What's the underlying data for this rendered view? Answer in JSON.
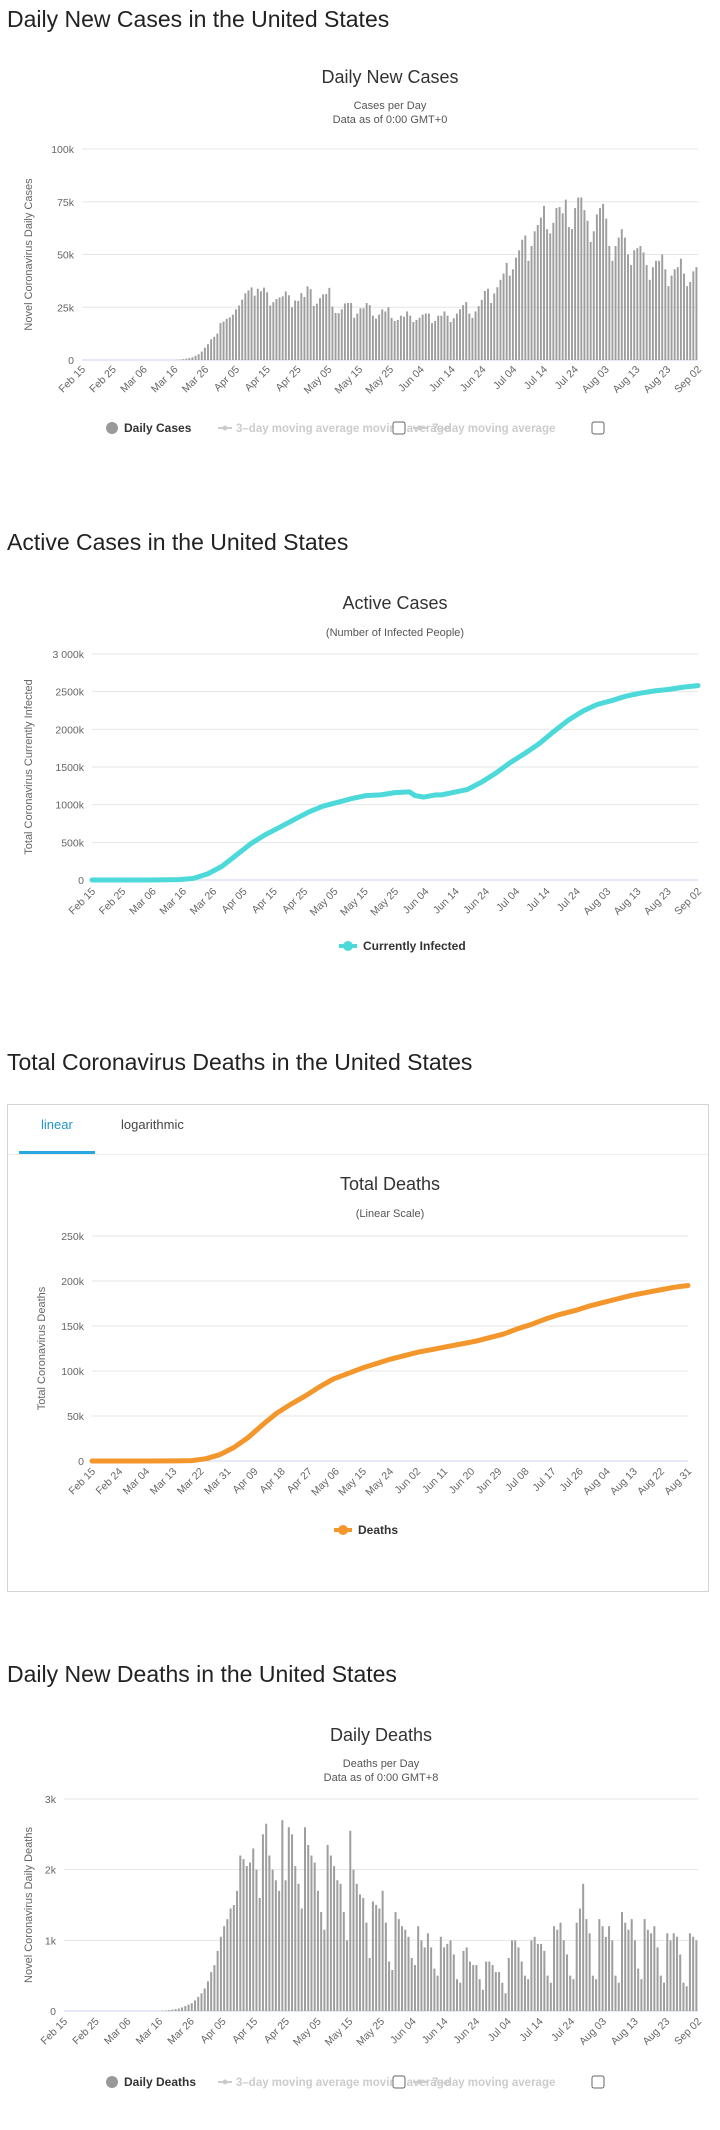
{
  "sections": {
    "daily_cases": "Daily New Cases in the United States",
    "active_cases": "Active Cases in the United States",
    "total_deaths": "Total Coronavirus Deaths in the United States",
    "daily_deaths": "Daily New Deaths in the United States"
  },
  "deaths_tabs": [
    "linear",
    "logarithmic"
  ],
  "colors": {
    "bars": "#9e9e9e",
    "active": "#4dd9d9",
    "deaths": "#f3962b",
    "grid": "#e6e6e6",
    "tab_active": "#2196c9"
  },
  "chart_data": [
    {
      "id": "daily_cases",
      "type": "bar",
      "title": "Daily New Cases",
      "subtitle": [
        "Cases per Day",
        "Data as of 0:00 GMT+0"
      ],
      "ylabel": "Novel Coronavirus Daily Cases",
      "ylim": [
        0,
        100000
      ],
      "yticks": [
        0,
        25000,
        50000,
        75000,
        100000
      ],
      "ytick_labels": [
        "0",
        "25k",
        "50k",
        "75k",
        "100k"
      ],
      "xtick_labels": [
        "Feb 15",
        "Feb 25",
        "Mar 06",
        "Mar 16",
        "Mar 26",
        "Apr 05",
        "Apr 15",
        "Apr 25",
        "May 05",
        "May 15",
        "May 25",
        "Jun 04",
        "Jun 14",
        "Jun 24",
        "Jul 04",
        "Jul 14",
        "Jul 24",
        "Aug 03",
        "Aug 13",
        "Aug 23",
        "Sep 02"
      ],
      "legend": [
        "Daily Cases",
        "3-day moving average",
        "7-day moving average"
      ],
      "values": [
        0,
        0,
        0,
        0,
        0,
        0,
        0,
        0,
        0,
        0,
        0,
        0,
        0,
        0,
        0,
        0,
        0,
        0,
        0,
        0,
        0,
        0,
        0,
        0,
        0,
        0,
        0,
        0,
        0,
        0,
        100,
        200,
        400,
        600,
        900,
        1300,
        2000,
        2700,
        4000,
        5800,
        7500,
        9800,
        11000,
        12500,
        17500,
        18200,
        19500,
        20200,
        21500,
        24000,
        25800,
        28600,
        31600,
        33000,
        34400,
        30500,
        33800,
        32600,
        34300,
        32100,
        25800,
        27400,
        28900,
        29600,
        30200,
        32500,
        30700,
        25000,
        28200,
        28000,
        31700,
        29900,
        34900,
        33600,
        25600,
        26700,
        29300,
        31100,
        31300,
        34200,
        25300,
        22300,
        22200,
        24000,
        26800,
        27000,
        27000,
        20000,
        22000,
        24500,
        24500,
        27000,
        26000,
        21000,
        19600,
        21500,
        24000,
        23000,
        25000,
        20000,
        18500,
        19000,
        21000,
        20500,
        23000,
        21000,
        18000,
        19000,
        20000,
        21500,
        22000,
        22000,
        17500,
        18500,
        21000,
        21000,
        23000,
        21000,
        18000,
        19800,
        22000,
        24000,
        26000,
        27500,
        22000,
        20000,
        23000,
        25500,
        28500,
        32700,
        33800,
        27000,
        31500,
        34500,
        38000,
        41000,
        46000,
        40000,
        43000,
        48500,
        52000,
        57000,
        59000,
        47000,
        54000,
        61000,
        64000,
        67500,
        73000,
        62000,
        60000,
        65000,
        72000,
        72500,
        69500,
        76000,
        63000,
        62000,
        72000,
        77000,
        77000,
        71000,
        66000,
        56000,
        61000,
        69000,
        72000,
        74000,
        67000,
        54000,
        47000,
        54000,
        58000,
        62000,
        58000,
        50000,
        45000,
        52000,
        53000,
        54000,
        51000,
        45000,
        38000,
        44000,
        47000,
        47000,
        50000,
        43000,
        35000,
        40000,
        43000,
        44000,
        48000,
        41000,
        35000,
        37000,
        42000,
        44000
      ]
    },
    {
      "id": "active_cases",
      "type": "line",
      "title": "Active Cases",
      "subtitle": [
        "(Number of Infected People)"
      ],
      "ylabel": "Total Coronavirus Currently Infected",
      "ylim": [
        0,
        3000000
      ],
      "yticks": [
        0,
        500000,
        1000000,
        1500000,
        2000000,
        2500000,
        3000000
      ],
      "ytick_labels": [
        "0",
        "500k",
        "1000k",
        "1500k",
        "2000k",
        "2500k",
        "3 000k"
      ],
      "xtick_labels": [
        "Feb 15",
        "Feb 25",
        "Mar 06",
        "Mar 16",
        "Mar 26",
        "Apr 05",
        "Apr 15",
        "Apr 25",
        "May 05",
        "May 15",
        "May 25",
        "Jun 04",
        "Jun 14",
        "Jun 24",
        "Jul 04",
        "Jul 14",
        "Jul 24",
        "Aug 03",
        "Aug 13",
        "Aug 23",
        "Sep 02"
      ],
      "legend": [
        "Currently Infected"
      ],
      "x": [
        0,
        20,
        30,
        35,
        40,
        45,
        50,
        55,
        60,
        65,
        70,
        75,
        80,
        85,
        90,
        95,
        100,
        105,
        110,
        112,
        115,
        119,
        121,
        125,
        130,
        135,
        140,
        145,
        150,
        155,
        160,
        165,
        170,
        175,
        180,
        185,
        190,
        195,
        200,
        205,
        210
      ],
      "values": [
        0,
        0,
        5000,
        20000,
        80000,
        180000,
        330000,
        480000,
        600000,
        700000,
        800000,
        900000,
        980000,
        1030000,
        1080000,
        1120000,
        1130000,
        1160000,
        1170000,
        1120000,
        1100000,
        1130000,
        1130000,
        1160000,
        1200000,
        1300000,
        1420000,
        1560000,
        1680000,
        1810000,
        1970000,
        2120000,
        2240000,
        2330000,
        2380000,
        2440000,
        2480000,
        2510000,
        2530000,
        2560000,
        2580000
      ]
    },
    {
      "id": "total_deaths",
      "type": "line",
      "title": "Total Deaths",
      "subtitle": [
        "(Linear Scale)"
      ],
      "ylabel": "Total Coronavirus Deaths",
      "ylim": [
        0,
        250000
      ],
      "yticks": [
        0,
        50000,
        100000,
        150000,
        200000,
        250000
      ],
      "ytick_labels": [
        "0",
        "50k",
        "100k",
        "150k",
        "200k",
        "250k"
      ],
      "xtick_labels": [
        "Feb 15",
        "Feb 24",
        "Mar 04",
        "Mar 13",
        "Mar 22",
        "Mar 31",
        "Apr 09",
        "Apr 18",
        "Apr 27",
        "May 06",
        "May 15",
        "May 24",
        "Jun 02",
        "Jun 11",
        "Jun 20",
        "Jun 29",
        "Jul 08",
        "Jul 17",
        "Jul 26",
        "Aug 04",
        "Aug 13",
        "Aug 22",
        "Aug 31"
      ],
      "legend": [
        "Deaths"
      ],
      "x": [
        0,
        20,
        30,
        35,
        40,
        45,
        50,
        55,
        60,
        65,
        70,
        75,
        80,
        85,
        90,
        95,
        100,
        105,
        110,
        115,
        120,
        125,
        130,
        135,
        140,
        145,
        150,
        155,
        160,
        165,
        170,
        175,
        180,
        185,
        190,
        195,
        200,
        205,
        210
      ],
      "values": [
        0,
        0,
        100,
        500,
        2500,
        7000,
        15000,
        26000,
        40000,
        53000,
        63000,
        72000,
        82000,
        91000,
        97000,
        103000,
        108000,
        113000,
        117000,
        121000,
        124000,
        127000,
        130000,
        133000,
        137000,
        141000,
        147000,
        152000,
        158000,
        163000,
        167000,
        172000,
        176000,
        180000,
        184000,
        187000,
        190000,
        193000,
        195000
      ]
    },
    {
      "id": "daily_deaths",
      "type": "bar",
      "title": "Daily Deaths",
      "subtitle": [
        "Deaths per Day",
        "Data as of 0:00 GMT+8"
      ],
      "ylabel": "Novel Coronavirus Daily Deaths",
      "ylim": [
        0,
        3000
      ],
      "yticks": [
        0,
        1000,
        2000,
        3000
      ],
      "ytick_labels": [
        "0",
        "1k",
        "2k",
        "3k"
      ],
      "xtick_labels": [
        "Feb 15",
        "Feb 25",
        "Mar 06",
        "Mar 16",
        "Mar 26",
        "Apr 05",
        "Apr 15",
        "Apr 25",
        "May 05",
        "May 15",
        "May 25",
        "Jun 04",
        "Jun 14",
        "Jun 24",
        "Jul 04",
        "Jul 14",
        "Jul 24",
        "Aug 03",
        "Aug 13",
        "Aug 23",
        "Sep 02"
      ],
      "legend": [
        "Daily Deaths",
        "3-day moving average",
        "7-day moving average"
      ],
      "values": [
        0,
        0,
        0,
        0,
        0,
        0,
        0,
        0,
        0,
        0,
        0,
        0,
        0,
        0,
        0,
        0,
        0,
        0,
        0,
        0,
        0,
        0,
        0,
        0,
        0,
        0,
        0,
        0,
        0,
        0,
        5,
        8,
        12,
        18,
        25,
        35,
        50,
        70,
        90,
        110,
        150,
        200,
        250,
        320,
        420,
        550,
        650,
        850,
        1050,
        1200,
        1300,
        1450,
        1500,
        1700,
        2200,
        2150,
        2050,
        2100,
        2300,
        2000,
        1600,
        2500,
        2650,
        2200,
        2000,
        1850,
        1700,
        2700,
        1850,
        2600,
        2500,
        2050,
        1800,
        1450,
        2600,
        2350,
        2200,
        2100,
        1700,
        1400,
        1150,
        2350,
        2200,
        2050,
        1850,
        1800,
        1400,
        1000,
        2550,
        2000,
        1800,
        1650,
        1600,
        1250,
        750,
        1550,
        1500,
        1450,
        1700,
        1250,
        700,
        580,
        1400,
        1300,
        1200,
        1150,
        1050,
        750,
        650,
        1200,
        1000,
        900,
        1100,
        900,
        600,
        500,
        1050,
        900,
        950,
        1000,
        800,
        450,
        400,
        850,
        900,
        700,
        650,
        650,
        450,
        300,
        700,
        700,
        650,
        550,
        550,
        400,
        250,
        750,
        1000,
        1000,
        900,
        700,
        500,
        450,
        1000,
        1050,
        950,
        950,
        850,
        500,
        400,
        1200,
        1150,
        1250,
        1000,
        800,
        500,
        450,
        1250,
        1450,
        1800,
        1300,
        1100,
        500,
        450,
        1300,
        1200,
        1050,
        1200,
        1000,
        500,
        400,
        1400,
        1250,
        1150,
        1300,
        1000,
        600,
        450,
        1300,
        1150,
        1100,
        1200,
        900,
        500,
        400,
        1100,
        1000,
        1100,
        1050,
        800,
        400,
        350,
        1100,
        1050,
        1000
      ]
    }
  ]
}
